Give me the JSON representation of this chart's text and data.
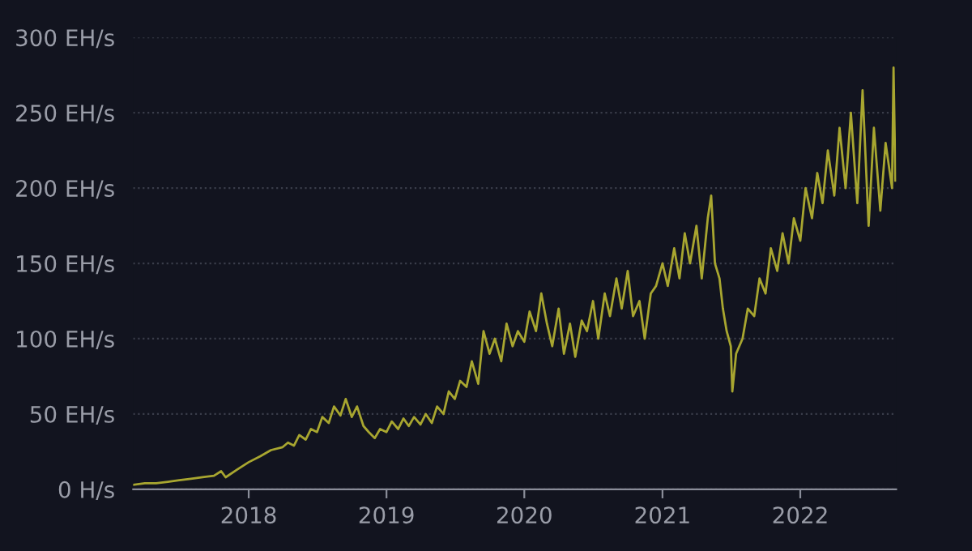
{
  "chart_data": {
    "type": "line",
    "x": [
      "2017-03-01",
      "2017-04-01",
      "2017-05-01",
      "2017-06-01",
      "2017-07-01",
      "2017-08-01",
      "2017-09-01",
      "2017-10-01",
      "2017-10-20",
      "2017-11-01",
      "2017-12-01",
      "2018-01-01",
      "2018-02-01",
      "2018-03-01",
      "2018-04-01",
      "2018-04-15",
      "2018-05-01",
      "2018-05-15",
      "2018-06-01",
      "2018-06-15",
      "2018-07-01",
      "2018-07-15",
      "2018-08-01",
      "2018-08-15",
      "2018-09-01",
      "2018-09-15",
      "2018-10-01",
      "2018-10-15",
      "2018-11-01",
      "2018-11-15",
      "2018-12-01",
      "2018-12-15",
      "2019-01-01",
      "2019-01-15",
      "2019-02-01",
      "2019-02-15",
      "2019-03-01",
      "2019-03-15",
      "2019-04-01",
      "2019-04-15",
      "2019-05-01",
      "2019-05-15",
      "2019-06-01",
      "2019-06-15",
      "2019-07-01",
      "2019-07-15",
      "2019-08-01",
      "2019-08-15",
      "2019-09-01",
      "2019-09-15",
      "2019-10-01",
      "2019-10-15",
      "2019-11-01",
      "2019-11-15",
      "2019-12-01",
      "2019-12-15",
      "2020-01-01",
      "2020-01-15",
      "2020-02-01",
      "2020-02-15",
      "2020-03-01",
      "2020-03-15",
      "2020-04-01",
      "2020-04-15",
      "2020-05-01",
      "2020-05-15",
      "2020-06-01",
      "2020-06-15",
      "2020-07-01",
      "2020-07-15",
      "2020-08-01",
      "2020-08-15",
      "2020-09-01",
      "2020-09-15",
      "2020-10-01",
      "2020-10-15",
      "2020-11-01",
      "2020-11-15",
      "2020-12-01",
      "2020-12-15",
      "2021-01-01",
      "2021-01-15",
      "2021-02-01",
      "2021-02-15",
      "2021-03-01",
      "2021-03-15",
      "2021-04-01",
      "2021-04-15",
      "2021-05-01",
      "2021-05-10",
      "2021-05-20",
      "2021-06-01",
      "2021-06-10",
      "2021-06-20",
      "2021-07-01",
      "2021-07-05",
      "2021-07-15",
      "2021-08-01",
      "2021-08-15",
      "2021-09-01",
      "2021-09-15",
      "2021-10-01",
      "2021-10-15",
      "2021-11-01",
      "2021-11-15",
      "2021-12-01",
      "2021-12-15",
      "2022-01-01",
      "2022-01-15",
      "2022-02-01",
      "2022-02-15",
      "2022-03-01",
      "2022-03-15",
      "2022-04-01",
      "2022-04-15",
      "2022-05-01",
      "2022-05-15",
      "2022-06-01",
      "2022-06-15",
      "2022-07-01",
      "2022-07-15",
      "2022-08-01",
      "2022-08-15",
      "2022-09-01",
      "2022-09-05",
      "2022-09-10"
    ],
    "series": [
      {
        "color": "#a8a630",
        "values": [
          3,
          4,
          4,
          5,
          6,
          7,
          8,
          9,
          12,
          8,
          13,
          18,
          22,
          26,
          28,
          31,
          29,
          36,
          33,
          40,
          38,
          48,
          44,
          55,
          49,
          60,
          48,
          55,
          42,
          38,
          34,
          40,
          38,
          45,
          40,
          47,
          42,
          48,
          43,
          50,
          44,
          55,
          50,
          65,
          60,
          72,
          68,
          85,
          70,
          105,
          90,
          100,
          85,
          110,
          95,
          105,
          98,
          118,
          105,
          130,
          110,
          95,
          120,
          90,
          110,
          88,
          112,
          105,
          125,
          100,
          130,
          115,
          140,
          120,
          145,
          115,
          125,
          100,
          130,
          135,
          150,
          135,
          160,
          140,
          170,
          150,
          175,
          140,
          180,
          195,
          150,
          140,
          120,
          105,
          95,
          65,
          90,
          100,
          120,
          115,
          140,
          130,
          160,
          145,
          170,
          150,
          180,
          165,
          200,
          180,
          210,
          190,
          225,
          195,
          240,
          200,
          250,
          190,
          265,
          175,
          240,
          185,
          230,
          200,
          280,
          205
        ]
      }
    ],
    "xlim": [
      "2017-03-01",
      "2022-09-12"
    ],
    "xticks": [
      {
        "value": "2018-01-01",
        "label": "2018"
      },
      {
        "value": "2019-01-01",
        "label": "2019"
      },
      {
        "value": "2020-01-01",
        "label": "2020"
      },
      {
        "value": "2021-01-01",
        "label": "2021"
      },
      {
        "value": "2022-01-01",
        "label": "2022"
      }
    ],
    "ylim": [
      0,
      300
    ],
    "yticks": [
      {
        "value": 0,
        "label": "0 H/s"
      },
      {
        "value": 50,
        "label": "50 EH/s"
      },
      {
        "value": 100,
        "label": "100 EH/s"
      },
      {
        "value": 150,
        "label": "150 EH/s"
      },
      {
        "value": 200,
        "label": "200 EH/s"
      },
      {
        "value": 250,
        "label": "250 EH/s"
      },
      {
        "value": 300,
        "label": "300 EH/s"
      }
    ],
    "grid": "y",
    "marker": "none",
    "line_style": "solid"
  }
}
